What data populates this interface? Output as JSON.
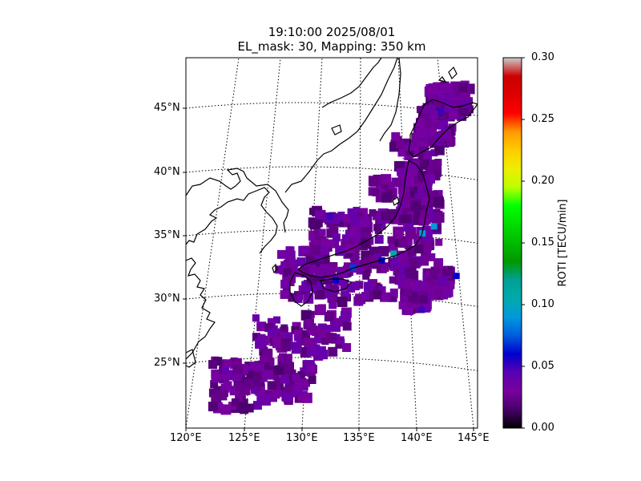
{
  "title": {
    "line1": "19:10:00 2025/08/01",
    "line2": "EL_mask: 30, Mapping: 350 km"
  },
  "map": {
    "projection": "conic",
    "region": "Japan",
    "lon_range": [
      120,
      145
    ],
    "lat_range": [
      20,
      49
    ],
    "lon_ticks": [
      "120°E",
      "125°E",
      "130°E",
      "135°E",
      "140°E",
      "145°E"
    ],
    "lat_ticks": [
      "25°N",
      "30°N",
      "35°N",
      "40°N",
      "45°N"
    ],
    "graticule": "dotted",
    "coastline_color": "#000000"
  },
  "colorbar": {
    "label": "ROTI [TECU/min]",
    "min": 0.0,
    "max": 0.3,
    "ticks": [
      "0.00",
      "0.05",
      "0.10",
      "0.15",
      "0.20",
      "0.25",
      "0.30"
    ],
    "colormap": "nipy_spectral"
  },
  "chart_data": {
    "type": "heatmap",
    "title": "19:10:00 2025/08/01 EL_mask: 30, Mapping: 350 km",
    "variable": "ROTI",
    "units": "TECU/min",
    "typical_value": 0.03,
    "value_range": [
      0.0,
      0.3
    ],
    "highlights": [
      {
        "lon": 138.0,
        "lat": 33.5,
        "value": 0.11
      },
      {
        "lon": 141.5,
        "lat": 35.5,
        "value": 0.09
      },
      {
        "lon": 140.5,
        "lat": 35.0,
        "value": 0.09
      },
      {
        "lon": 134.5,
        "lat": 32.5,
        "value": 0.07
      },
      {
        "lon": 133.0,
        "lat": 31.5,
        "value": 0.06
      },
      {
        "lon": 137.0,
        "lat": 33.0,
        "value": 0.06
      },
      {
        "lon": 143.5,
        "lat": 31.5,
        "value": 0.06
      },
      {
        "lon": 140.5,
        "lat": 29.0,
        "value": 0.05
      },
      {
        "lon": 132.5,
        "lat": 36.5,
        "value": 0.05
      },
      {
        "lon": 142.0,
        "lat": 44.5,
        "value": 0.05
      }
    ]
  }
}
